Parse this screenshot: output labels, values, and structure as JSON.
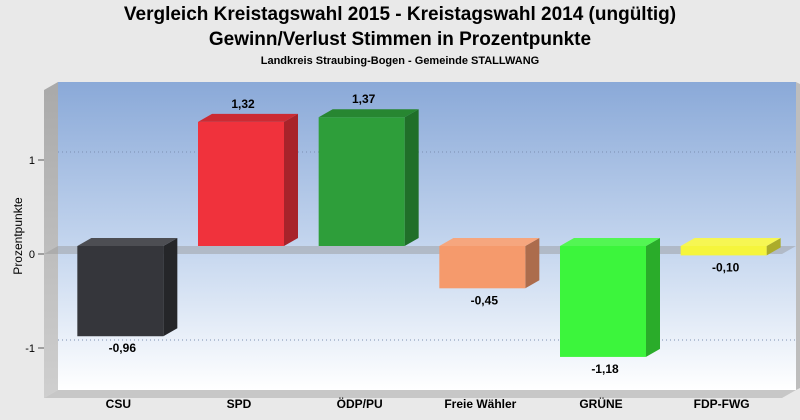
{
  "chart_data": {
    "type": "bar",
    "title": "Vergleich Kreistagswahl 2015 - Kreistagswahl 2014 (ungültig)",
    "subtitle": "Gewinn/Verlust Stimmen in Prozentpunkte",
    "caption": "Landkreis Straubing-Bogen - Gemeinde STALLWANG",
    "xlabel": "",
    "ylabel": "Prozentpunkte",
    "ylim": [
      -1.55,
      1.79
    ],
    "yticks": [
      -1,
      0,
      1
    ],
    "ytick_labels": [
      "-1",
      "0",
      "1"
    ],
    "categories": [
      "CSU",
      "SPD",
      "ÖDP/PU",
      "Freie Wähler",
      "GRÜNE",
      "FDP-FWG"
    ],
    "values": [
      -0.96,
      1.32,
      1.37,
      -0.45,
      -1.18,
      -0.1
    ],
    "value_labels": [
      "-0,96",
      "1,32",
      "1,37",
      "-0,45",
      "-1,18",
      "-0,10"
    ],
    "colors": [
      "#35363b",
      "#f0323c",
      "#2e9e3a",
      "#f59a6c",
      "#3cf53c",
      "#f5f53c"
    ],
    "grid": "dotted"
  }
}
